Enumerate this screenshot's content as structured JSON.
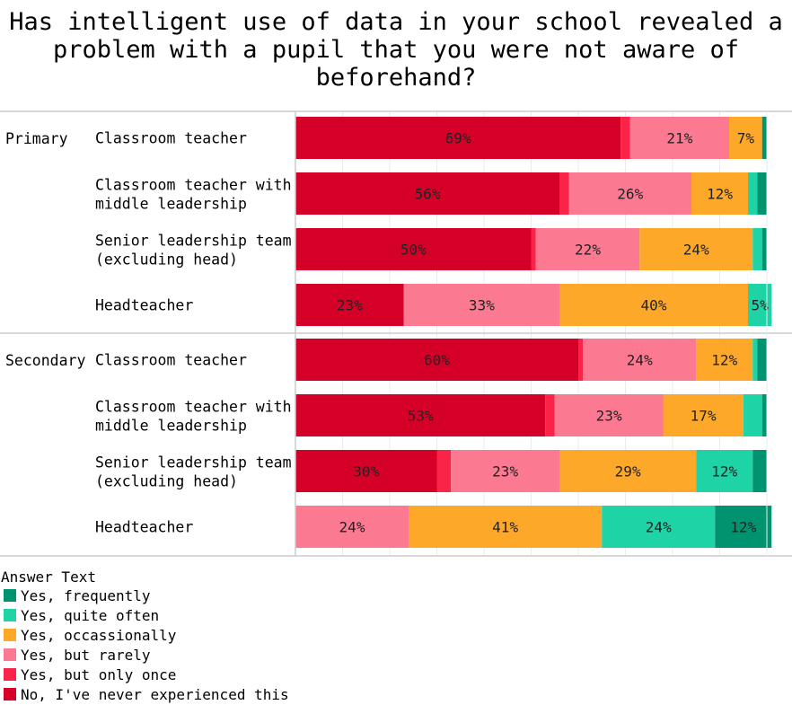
{
  "chart_data": {
    "type": "bar",
    "orientation": "horizontal-stacked-100",
    "title_lines": [
      "Has intelligent use of data in your school revealed a",
      "problem with a pupil that you were not aware of",
      "beforehand?"
    ],
    "xlim": [
      0,
      100
    ],
    "grid": true,
    "legend": {
      "title": "Answer Text",
      "placement": "bottom-left",
      "entries": [
        "Yes, frequently",
        "Yes, quite often",
        "Yes, occassionally",
        "Yes, but rarely",
        "Yes, but only once",
        "No, I've never experienced this"
      ]
    },
    "series_order": [
      "No, I've never experienced this",
      "Yes, but only once",
      "Yes, but rarely",
      "Yes, occassionally",
      "Yes, quite often",
      "Yes, frequently"
    ],
    "colors": {
      "Yes, frequently": "#00936F",
      "Yes, quite often": "#1ED3A6",
      "Yes, occassionally": "#FDA828",
      "Yes, but rarely": "#FB7A91",
      "Yes, but only once": "#FA2449",
      "No, I've never experienced this": "#D50027"
    },
    "groups": [
      {
        "name": "Primary",
        "rows": [
          {
            "label": [
              "Classroom teacher"
            ],
            "values": [
              69,
              2,
              21,
              7,
              0,
              1
            ]
          },
          {
            "label": [
              "Classroom teacher with",
              "middle leadership"
            ],
            "values": [
              56,
              2,
              26,
              12,
              2,
              2
            ]
          },
          {
            "label": [
              "Senior leadership team",
              "(excluding head)"
            ],
            "values": [
              50,
              1,
              22,
              24,
              2,
              1
            ]
          },
          {
            "label": [
              "Headteacher"
            ],
            "values": [
              23,
              0,
              33,
              40,
              5,
              0
            ]
          }
        ]
      },
      {
        "name": "Secondary",
        "rows": [
          {
            "label": [
              "Classroom teacher"
            ],
            "values": [
              60,
              1,
              24,
              12,
              1,
              2
            ]
          },
          {
            "label": [
              "Classroom teacher with",
              "middle leadership"
            ],
            "values": [
              53,
              2,
              23,
              17,
              4,
              1
            ]
          },
          {
            "label": [
              "Senior leadership team",
              "(excluding head)"
            ],
            "values": [
              30,
              3,
              23,
              29,
              12,
              3
            ]
          },
          {
            "label": [
              "Headteacher"
            ],
            "values": [
              0,
              0,
              24,
              41,
              24,
              12
            ]
          }
        ]
      }
    ],
    "label_threshold_percent": 5
  }
}
